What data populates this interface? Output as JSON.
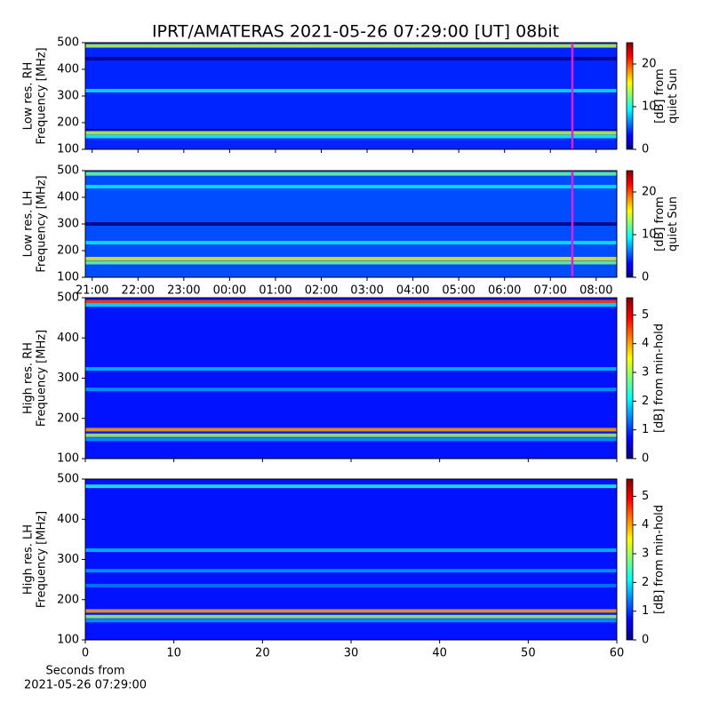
{
  "title": "IPRT/AMATERAS 2021-05-26 07:29:00 [UT]   08bit",
  "chart_data": [
    {
      "type": "heatmap",
      "ylabel": [
        "Low res. RH",
        "Frequency [MHz]"
      ],
      "ylim": [
        100,
        500
      ],
      "yticks": [
        100,
        200,
        300,
        400,
        500
      ],
      "xlim": [
        20.85,
        32.45
      ],
      "xticks": [
        {
          "value": 21,
          "label": "21:00"
        },
        {
          "value": 22,
          "label": "22:00"
        },
        {
          "value": 23,
          "label": "23:00"
        },
        {
          "value": 24,
          "label": "00:00"
        },
        {
          "value": 25,
          "label": "01:00"
        },
        {
          "value": 26,
          "label": "02:00"
        },
        {
          "value": 27,
          "label": "03:00"
        },
        {
          "value": 28,
          "label": "04:00"
        },
        {
          "value": 29,
          "label": "05:00"
        },
        {
          "value": 30,
          "label": "06:00"
        },
        {
          "value": 31,
          "label": "07:00"
        },
        {
          "value": 32,
          "label": "08:00"
        }
      ],
      "show_xtick_labels": false,
      "base_level": 4,
      "bands": [
        {
          "freq": 488,
          "level": 14
        },
        {
          "freq": 440,
          "level": 0
        },
        {
          "freq": 320,
          "level": 9
        },
        {
          "freq": 170,
          "level": 0
        },
        {
          "freq": 162,
          "level": 14
        },
        {
          "freq": 148,
          "level": 10
        }
      ],
      "marker_x": 31.48,
      "marker_color": "#e01ee0",
      "clabel": [
        "[dB] from",
        "quiet Sun"
      ],
      "clim": [
        0,
        25
      ],
      "cticks": [
        0,
        10,
        20
      ]
    },
    {
      "type": "heatmap",
      "ylabel": [
        "Low res. LH",
        "Frequency [MHz]"
      ],
      "ylim": [
        100,
        500
      ],
      "yticks": [
        100,
        200,
        300,
        400,
        500
      ],
      "xlim": [
        20.85,
        32.45
      ],
      "xticks": [
        {
          "value": 21,
          "label": "21:00"
        },
        {
          "value": 22,
          "label": "22:00"
        },
        {
          "value": 23,
          "label": "23:00"
        },
        {
          "value": 24,
          "label": "00:00"
        },
        {
          "value": 25,
          "label": "01:00"
        },
        {
          "value": 26,
          "label": "02:00"
        },
        {
          "value": 27,
          "label": "03:00"
        },
        {
          "value": 28,
          "label": "04:00"
        },
        {
          "value": 29,
          "label": "05:00"
        },
        {
          "value": 30,
          "label": "06:00"
        },
        {
          "value": 31,
          "label": "07:00"
        },
        {
          "value": 32,
          "label": "08:00"
        }
      ],
      "show_xtick_labels": true,
      "base_level": 5,
      "bands": [
        {
          "freq": 488,
          "level": 12
        },
        {
          "freq": 440,
          "level": 9
        },
        {
          "freq": 300,
          "level": 0
        },
        {
          "freq": 230,
          "level": 9
        },
        {
          "freq": 170,
          "level": 16
        },
        {
          "freq": 155,
          "level": 12
        }
      ],
      "marker_x": 31.48,
      "marker_color": "#e01ee0",
      "clabel": [
        "[dB] from",
        "quiet Sun"
      ],
      "clim": [
        0,
        25
      ],
      "cticks": [
        0,
        10,
        20
      ]
    },
    {
      "type": "heatmap",
      "ylabel": [
        "High res. RH",
        "Frequency [MHz]"
      ],
      "ylim": [
        100,
        500
      ],
      "yticks": [
        100,
        200,
        300,
        400,
        500
      ],
      "xlim": [
        0,
        60
      ],
      "xticks": [
        0,
        10,
        20,
        30,
        40,
        50,
        60
      ],
      "show_xtick_labels": false,
      "base_level": 0.8,
      "bands": [
        {
          "freq": 490,
          "level": 4.5
        },
        {
          "freq": 482,
          "level": 2
        },
        {
          "freq": 323,
          "level": 1.8
        },
        {
          "freq": 272,
          "level": 1.6
        },
        {
          "freq": 172,
          "level": 4
        },
        {
          "freq": 158,
          "level": 3
        },
        {
          "freq": 148,
          "level": 1.6
        }
      ],
      "clabel": [
        "[dB] from min-hold"
      ],
      "clim": [
        0,
        5.6
      ],
      "cticks": [
        0,
        1,
        2,
        3,
        4,
        5
      ]
    },
    {
      "type": "heatmap",
      "ylabel": [
        "High res. LH",
        "Frequency [MHz]"
      ],
      "ylim": [
        100,
        500
      ],
      "yticks": [
        100,
        200,
        300,
        400,
        500
      ],
      "xlim": [
        0,
        60
      ],
      "xticks": [
        0,
        10,
        20,
        30,
        40,
        50,
        60
      ],
      "show_xtick_labels": true,
      "xlabel": [
        "Seconds from",
        "2021-05-26 07:29:00"
      ],
      "base_level": 0.8,
      "bands": [
        {
          "freq": 482,
          "level": 2.3
        },
        {
          "freq": 323,
          "level": 1.8
        },
        {
          "freq": 272,
          "level": 1.6
        },
        {
          "freq": 235,
          "level": 1.4
        },
        {
          "freq": 172,
          "level": 4
        },
        {
          "freq": 158,
          "level": 3
        },
        {
          "freq": 148,
          "level": 1.6
        }
      ],
      "clabel": [
        "[dB] from min-hold"
      ],
      "clim": [
        0,
        5.6
      ],
      "cticks": [
        0,
        1,
        2,
        3,
        4,
        5
      ]
    }
  ]
}
